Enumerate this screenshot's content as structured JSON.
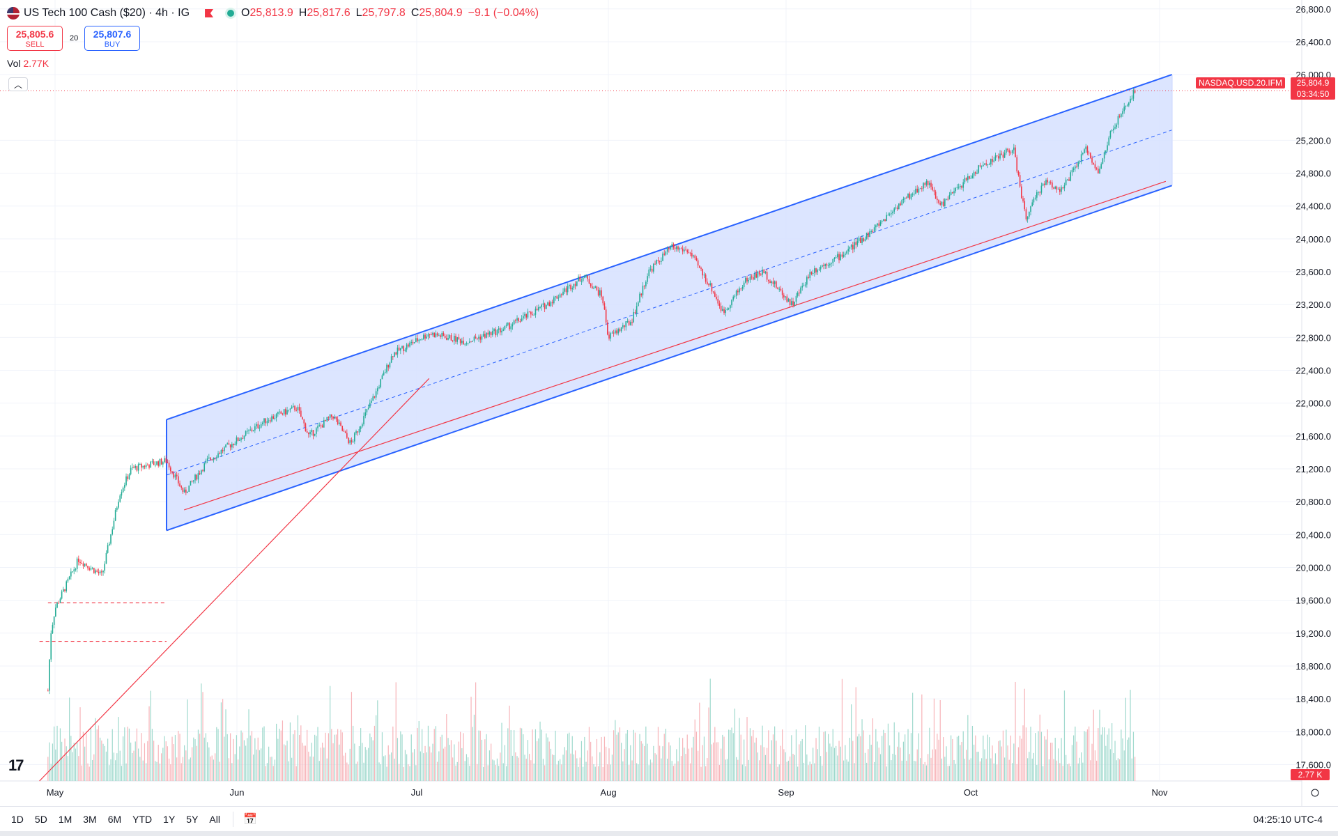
{
  "header": {
    "title": "US Tech 100 Cash ($20) · 4h · IG",
    "ohlc": [
      {
        "k": "O",
        "v": "25,813.9"
      },
      {
        "k": "H",
        "v": "25,817.6"
      },
      {
        "k": "L",
        "v": "25,797.8"
      },
      {
        "k": "C",
        "v": "25,804.9"
      }
    ],
    "change": "−9.1 (−0.04%)"
  },
  "trade": {
    "sell_price": "25,805.6",
    "sell_label": "SELL",
    "buy_price": "25,807.6",
    "buy_label": "BUY",
    "spread": "20"
  },
  "volume": {
    "label": "Vol",
    "value": "2.77K"
  },
  "price_axis": {
    "ticks": [
      "26,800.0",
      "26,400.0",
      "26,000.0",
      "25,200.0",
      "24,800.0",
      "24,400.0",
      "24,000.0",
      "23,600.0",
      "23,200.0",
      "22,800.0",
      "22,400.0",
      "22,000.0",
      "21,600.0",
      "21,200.0",
      "20,800.0",
      "20,400.0",
      "20,000.0",
      "19,600.0",
      "19,200.0",
      "18,800.0",
      "18,400.0",
      "18,000.0",
      "17,600.0"
    ],
    "ylim": [
      17400,
      26900
    ]
  },
  "time_axis": {
    "ticks": [
      "May",
      "Jun",
      "Jul",
      "Aug",
      "Sep",
      "Oct",
      "Nov"
    ]
  },
  "badges": {
    "symbol": "NASDAQ.USD.20.IFM",
    "last_price": "25,804.9",
    "countdown": "03:34:50",
    "volume": "2.77 K"
  },
  "colors": {
    "up": "#22ab94",
    "down": "#f23645",
    "channel": "#2962ff",
    "channel_fill": "#d6e0ff",
    "trend": "#f23645"
  },
  "chart_data": {
    "type": "candlestick",
    "interval": "4h",
    "xlabel": "",
    "ylabel": "",
    "x_months": [
      "May",
      "Jun",
      "Jul",
      "Aug",
      "Sep",
      "Oct",
      "Nov"
    ],
    "ylim": [
      17400,
      26900
    ],
    "last_close": 25804.9,
    "close_path": [
      {
        "m": "Apr-26",
        "v": 18500
      },
      {
        "m": "Apr-28",
        "v": 19200
      },
      {
        "m": "May-01",
        "v": 19500
      },
      {
        "m": "May-05",
        "v": 20100
      },
      {
        "m": "May-09",
        "v": 19900
      },
      {
        "m": "May-12",
        "v": 20900
      },
      {
        "m": "May-14",
        "v": 21200
      },
      {
        "m": "May-20",
        "v": 21300
      },
      {
        "m": "May-23",
        "v": 20900
      },
      {
        "m": "May-27",
        "v": 21300
      },
      {
        "m": "Jun-02",
        "v": 21600
      },
      {
        "m": "Jun-06",
        "v": 21800
      },
      {
        "m": "Jun-11",
        "v": 21950
      },
      {
        "m": "Jun-13",
        "v": 21600
      },
      {
        "m": "Jun-17",
        "v": 21850
      },
      {
        "m": "Jun-20",
        "v": 21500
      },
      {
        "m": "Jun-24",
        "v": 22100
      },
      {
        "m": "Jun-27",
        "v": 22600
      },
      {
        "m": "Jul-03",
        "v": 22850
      },
      {
        "m": "Jul-09",
        "v": 22750
      },
      {
        "m": "Jul-15",
        "v": 22900
      },
      {
        "m": "Jul-22",
        "v": 23200
      },
      {
        "m": "Jul-28",
        "v": 23550
      },
      {
        "m": "Jul-31",
        "v": 23300
      },
      {
        "m": "Aug-01",
        "v": 22800
      },
      {
        "m": "Aug-05",
        "v": 23000
      },
      {
        "m": "Aug-08",
        "v": 23600
      },
      {
        "m": "Aug-12",
        "v": 23900
      },
      {
        "m": "Aug-15",
        "v": 23850
      },
      {
        "m": "Aug-19",
        "v": 23400
      },
      {
        "m": "Aug-21",
        "v": 23100
      },
      {
        "m": "Aug-25",
        "v": 23500
      },
      {
        "m": "Aug-28",
        "v": 23600
      },
      {
        "m": "Sep-02",
        "v": 23200
      },
      {
        "m": "Sep-05",
        "v": 23600
      },
      {
        "m": "Sep-10",
        "v": 23800
      },
      {
        "m": "Sep-15",
        "v": 24100
      },
      {
        "m": "Sep-19",
        "v": 24400
      },
      {
        "m": "Sep-24",
        "v": 24700
      },
      {
        "m": "Sep-26",
        "v": 24400
      },
      {
        "m": "Sep-30",
        "v": 24700
      },
      {
        "m": "Oct-03",
        "v": 24900
      },
      {
        "m": "Oct-08",
        "v": 25100
      },
      {
        "m": "Oct-10",
        "v": 24250
      },
      {
        "m": "Oct-13",
        "v": 24700
      },
      {
        "m": "Oct-16",
        "v": 24600
      },
      {
        "m": "Oct-20",
        "v": 25100
      },
      {
        "m": "Oct-22",
        "v": 24800
      },
      {
        "m": "Oct-24",
        "v": 25300
      },
      {
        "m": "Oct-28",
        "v": 25804.9
      }
    ],
    "channel": {
      "upper": [
        {
          "m": "May-20",
          "v": 21800
        },
        {
          "m": "Nov-03",
          "v": 26000
        }
      ],
      "lower": [
        {
          "m": "May-20",
          "v": 20450
        },
        {
          "m": "Nov-03",
          "v": 24650
        }
      ]
    },
    "trendlines": [
      {
        "from": {
          "m": "May-23",
          "v": 20700
        },
        "to": {
          "m": "Nov-02",
          "v": 24700
        }
      },
      {
        "from": {
          "m": "Apr-20",
          "v": 17400
        },
        "to": {
          "m": "Jul-03",
          "v": 22300
        }
      }
    ],
    "levels": [
      {
        "v": 19570,
        "from": "Apr-26",
        "to": "May-20"
      },
      {
        "v": 19100,
        "from": "Apr-20",
        "to": "May-20"
      }
    ]
  },
  "bottom_bar": {
    "ranges": [
      "1D",
      "5D",
      "1M",
      "3M",
      "6M",
      "YTD",
      "1Y",
      "5Y",
      "All"
    ],
    "clock": "04:25:10 UTC-4"
  }
}
